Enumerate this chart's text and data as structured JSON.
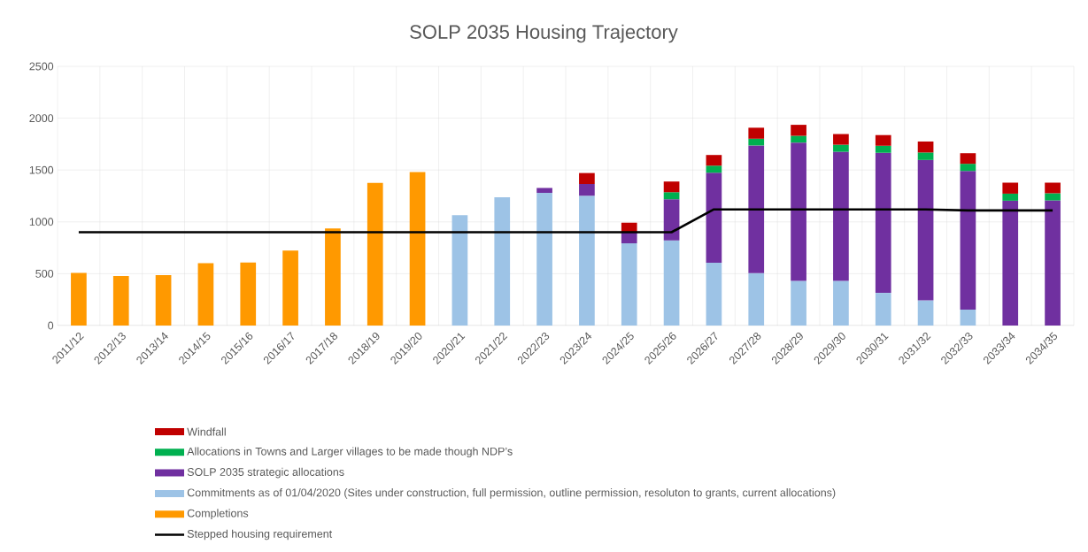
{
  "chart_data": {
    "type": "bar",
    "stacked": true,
    "title": "SOLP 2035 Housing Trajectory",
    "categories": [
      "2011/12",
      "2012/13",
      "2013/14",
      "2014/15",
      "2015/16",
      "2016/17",
      "2017/18",
      "2018/19",
      "2019/20",
      "2020/21",
      "2021/22",
      "2022/23",
      "2023/24",
      "2024/25",
      "2025/26",
      "2026/27",
      "2027/28",
      "2028/29",
      "2029/30",
      "2030/31",
      "2031/32",
      "2032/33",
      "2033/34",
      "2034/35"
    ],
    "series": [
      {
        "name": "Completions",
        "color": "#ff9900",
        "values": [
          507,
          477,
          487,
          602,
          608,
          723,
          936,
          1376,
          1480,
          null,
          null,
          null,
          null,
          null,
          null,
          null,
          null,
          null,
          null,
          null,
          null,
          null,
          null,
          null
        ]
      },
      {
        "name": "Commitments as of 01/04/2020 (Sites under construction, full permission, outline permission, resoluton to grants, current allocations)",
        "color": "#9dc3e6",
        "values": [
          null,
          null,
          null,
          null,
          null,
          null,
          null,
          null,
          null,
          1065,
          1237,
          1280,
          1252,
          793,
          821,
          605,
          506,
          431,
          431,
          315,
          243,
          154,
          null,
          null
        ]
      },
      {
        "name": "SOLP 2035 strategic allocations",
        "color": "#7030a0",
        "values": [
          null,
          null,
          null,
          null,
          null,
          null,
          null,
          null,
          null,
          null,
          null,
          47,
          113,
          106,
          397,
          869,
          1231,
          1334,
          1245,
          1351,
          1354,
          1337,
          1204,
          1207
        ]
      },
      {
        "name": "Allocations in Towns and Larger villages to be made though NDP’s",
        "color": "#00b050",
        "values": [
          null,
          null,
          null,
          null,
          null,
          null,
          null,
          null,
          null,
          null,
          null,
          null,
          null,
          null,
          68,
          68,
          65,
          65,
          68,
          68,
          72,
          69,
          68,
          69
        ]
      },
      {
        "name": "Windfall",
        "color": "#c00000",
        "values": [
          null,
          null,
          null,
          null,
          null,
          null,
          null,
          null,
          null,
          null,
          null,
          null,
          106,
          93,
          103,
          103,
          106,
          106,
          103,
          103,
          106,
          102,
          106,
          102
        ]
      },
      {
        "name": "Stepped housing requirement",
        "type": "line",
        "color": "#000000",
        "values": [
          900,
          900,
          900,
          900,
          900,
          900,
          900,
          900,
          900,
          900,
          900,
          900,
          900,
          900,
          900,
          1120,
          1120,
          1120,
          1120,
          1120,
          1120,
          1110,
          1110,
          1110
        ]
      }
    ],
    "ylim": [
      0,
      2500
    ],
    "yticks": [
      0,
      500,
      1000,
      1500,
      2000,
      2500
    ],
    "grid": true,
    "legend": "bottom"
  }
}
